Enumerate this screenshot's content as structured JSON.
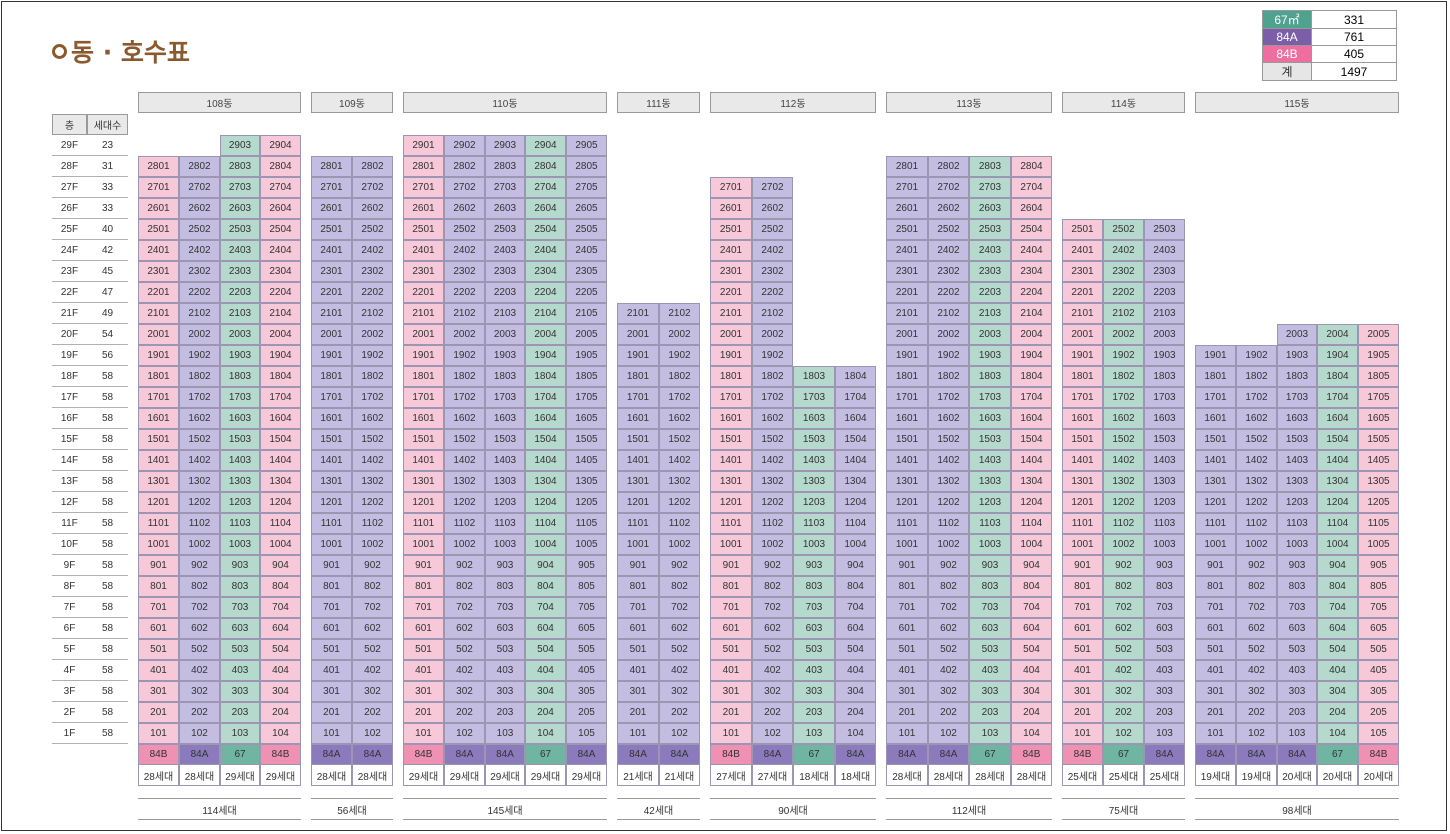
{
  "title": "동 · 호수표",
  "legend": [
    {
      "label": "67㎡",
      "value": "331",
      "color": "#4fa28d",
      "text_color": "#ffffff"
    },
    {
      "label": "84A",
      "value": "761",
      "color": "#7a5fa8",
      "text_color": "#ffffff"
    },
    {
      "label": "84B",
      "value": "405",
      "color": "#ee6f9f",
      "text_color": "#ffffff"
    },
    {
      "label": "계",
      "value": "1497",
      "color": "#e6e6e6",
      "text_color": "#333333"
    }
  ],
  "colors": {
    "67": "#b5d9cd",
    "84A": "#c3bee1",
    "84B": "#f6c8d8",
    "tag_67": "#6fb5a2",
    "tag_84A": "#8b7bbd",
    "tag_84B": "#ef91b3"
  },
  "floor_col_header": "층",
  "count_col_header": "세대수",
  "floors": [
    {
      "floor": "29F",
      "count": "23"
    },
    {
      "floor": "28F",
      "count": "31"
    },
    {
      "floor": "27F",
      "count": "33"
    },
    {
      "floor": "26F",
      "count": "33"
    },
    {
      "floor": "25F",
      "count": "40"
    },
    {
      "floor": "24F",
      "count": "42"
    },
    {
      "floor": "23F",
      "count": "45"
    },
    {
      "floor": "22F",
      "count": "47"
    },
    {
      "floor": "21F",
      "count": "49"
    },
    {
      "floor": "20F",
      "count": "54"
    },
    {
      "floor": "19F",
      "count": "56"
    },
    {
      "floor": "18F",
      "count": "58"
    },
    {
      "floor": "17F",
      "count": "58"
    },
    {
      "floor": "16F",
      "count": "58"
    },
    {
      "floor": "15F",
      "count": "58"
    },
    {
      "floor": "14F",
      "count": "58"
    },
    {
      "floor": "13F",
      "count": "58"
    },
    {
      "floor": "12F",
      "count": "58"
    },
    {
      "floor": "11F",
      "count": "58"
    },
    {
      "floor": "10F",
      "count": "58"
    },
    {
      "floor": "9F",
      "count": "58"
    },
    {
      "floor": "8F",
      "count": "58"
    },
    {
      "floor": "7F",
      "count": "58"
    },
    {
      "floor": "6F",
      "count": "58"
    },
    {
      "floor": "5F",
      "count": "58"
    },
    {
      "floor": "4F",
      "count": "58"
    },
    {
      "floor": "3F",
      "count": "58"
    },
    {
      "floor": "2F",
      "count": "58"
    },
    {
      "floor": "1F",
      "count": "58"
    }
  ],
  "buildings": [
    {
      "name": "108동",
      "total": "114세대",
      "columns": [
        {
          "line": 1,
          "top": 28,
          "type": "84B",
          "count": "28세대"
        },
        {
          "line": 2,
          "top": 28,
          "type": "84A",
          "count": "28세대"
        },
        {
          "line": 3,
          "top": 29,
          "type": "67",
          "count": "29세대"
        },
        {
          "line": 4,
          "top": 29,
          "type": "84B",
          "count": "29세대"
        }
      ]
    },
    {
      "name": "109동",
      "total": "56세대",
      "columns": [
        {
          "line": 1,
          "top": 28,
          "type": "84A",
          "count": "28세대"
        },
        {
          "line": 2,
          "top": 28,
          "type": "84A",
          "count": "28세대"
        }
      ]
    },
    {
      "name": "110동",
      "total": "145세대",
      "columns": [
        {
          "line": 1,
          "top": 29,
          "type": "84B",
          "count": "29세대"
        },
        {
          "line": 2,
          "top": 29,
          "type": "84A",
          "count": "29세대"
        },
        {
          "line": 3,
          "top": 29,
          "type": "84A",
          "count": "29세대"
        },
        {
          "line": 4,
          "top": 29,
          "type": "67",
          "count": "29세대"
        },
        {
          "line": 5,
          "top": 29,
          "type": "84A",
          "count": "29세대"
        }
      ]
    },
    {
      "name": "111동",
      "total": "42세대",
      "columns": [
        {
          "line": 1,
          "top": 21,
          "type": "84A",
          "count": "21세대"
        },
        {
          "line": 2,
          "top": 21,
          "type": "84A",
          "count": "21세대"
        }
      ]
    },
    {
      "name": "112동",
      "total": "90세대",
      "columns": [
        {
          "line": 1,
          "top": 27,
          "type": "84B",
          "count": "27세대"
        },
        {
          "line": 2,
          "top": 27,
          "type": "84A",
          "count": "27세대"
        },
        {
          "line": 3,
          "top": 18,
          "type": "67",
          "count": "18세대"
        },
        {
          "line": 4,
          "top": 18,
          "type": "84A",
          "count": "18세대"
        }
      ]
    },
    {
      "name": "113동",
      "total": "112세대",
      "columns": [
        {
          "line": 1,
          "top": 28,
          "type": "84A",
          "count": "28세대"
        },
        {
          "line": 2,
          "top": 28,
          "type": "84A",
          "count": "28세대"
        },
        {
          "line": 3,
          "top": 28,
          "type": "67",
          "count": "28세대"
        },
        {
          "line": 4,
          "top": 28,
          "type": "84B",
          "count": "28세대"
        }
      ]
    },
    {
      "name": "114동",
      "total": "75세대",
      "columns": [
        {
          "line": 1,
          "top": 25,
          "type": "84B",
          "count": "25세대"
        },
        {
          "line": 2,
          "top": 25,
          "type": "67",
          "count": "25세대"
        },
        {
          "line": 3,
          "top": 25,
          "type": "84A",
          "count": "25세대"
        }
      ]
    },
    {
      "name": "115동",
      "total": "98세대",
      "columns": [
        {
          "line": 1,
          "top": 19,
          "type": "84A",
          "count": "19세대"
        },
        {
          "line": 2,
          "top": 19,
          "type": "84A",
          "count": "19세대"
        },
        {
          "line": 3,
          "top": 20,
          "type": "84A",
          "count": "20세대"
        },
        {
          "line": 4,
          "top": 20,
          "type": "67",
          "count": "20세대"
        },
        {
          "line": 5,
          "top": 20,
          "type": "84B",
          "count": "20세대"
        }
      ]
    }
  ]
}
